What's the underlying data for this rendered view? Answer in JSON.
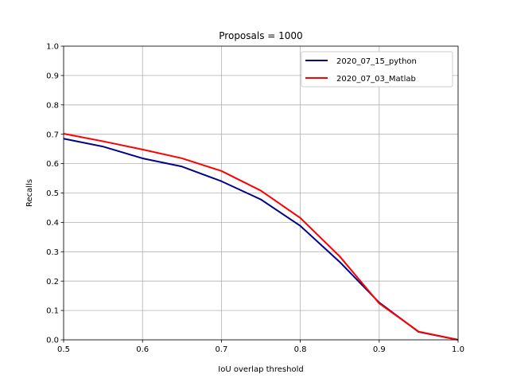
{
  "chart_data": {
    "type": "line",
    "title": "Proposals = 1000",
    "xlabel": "IoU overlap threshold",
    "ylabel": "Recalls",
    "xlim": [
      0.5,
      1.0
    ],
    "ylim": [
      0.0,
      1.0
    ],
    "x_ticks": [
      "0.5",
      "0.6",
      "0.7",
      "0.8",
      "0.9",
      "1.0"
    ],
    "y_ticks": [
      "0.0",
      "0.1",
      "0.2",
      "0.3",
      "0.4",
      "0.5",
      "0.6",
      "0.7",
      "0.8",
      "0.9",
      "1.0"
    ],
    "grid": true,
    "legend_position": "top-right",
    "x": [
      0.5,
      0.55,
      0.6,
      0.65,
      0.7,
      0.75,
      0.8,
      0.85,
      0.9,
      0.95,
      1.0
    ],
    "series": [
      {
        "name": "2020_07_15_python",
        "color": "#00008b",
        "values": [
          0.685,
          0.658,
          0.618,
          0.59,
          0.54,
          0.478,
          0.388,
          0.265,
          0.127,
          0.027,
          0.0
        ]
      },
      {
        "name": "2020_07_03_Matlab",
        "color": "#ff0000",
        "values": [
          0.702,
          0.676,
          0.648,
          0.618,
          0.575,
          0.508,
          0.415,
          0.284,
          0.124,
          0.028,
          0.0
        ]
      }
    ]
  }
}
